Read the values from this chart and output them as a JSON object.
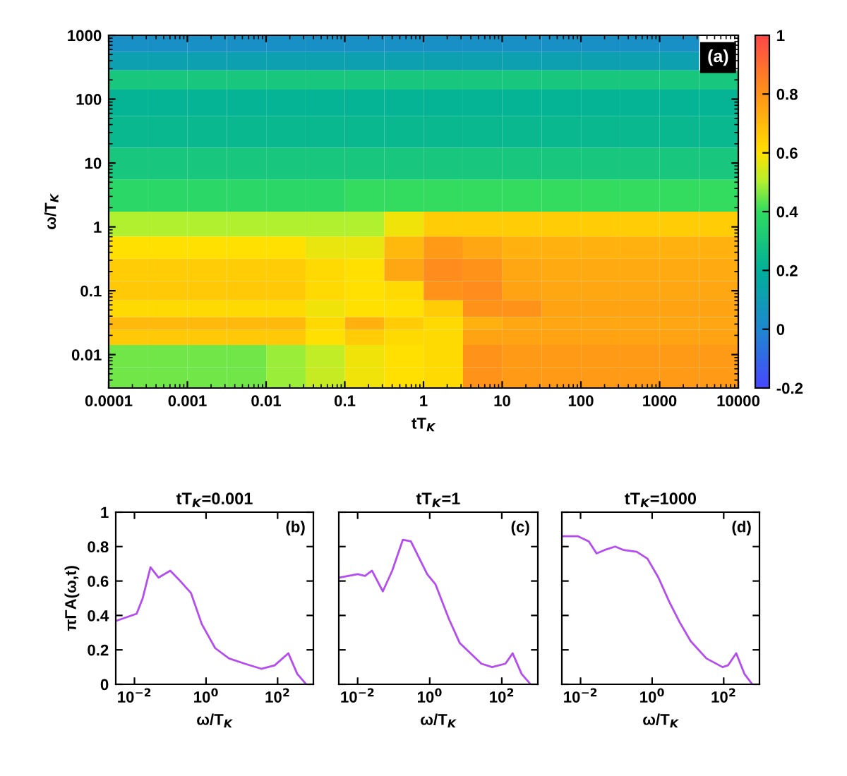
{
  "chart_data": [
    {
      "type": "heatmap",
      "xlabel": "tT$_{K}$",
      "ylabel": "ω/T$_{K}$",
      "log": "xy",
      "x": [
        0.00018,
        0.00056,
        0.0018,
        0.0056,
        0.018,
        0.056,
        0.18,
        0.56,
        1.8,
        5.6,
        18,
        56,
        180,
        560,
        1800,
        5600
      ],
      "y": [
        750,
        400,
        200,
        100,
        30,
        10,
        3,
        1,
        0.5,
        0.2,
        0.1,
        0.05,
        0.03,
        0.02,
        0.01,
        0.004
      ],
      "cells": [
        [
          0.04,
          0.04,
          0.04,
          0.04,
          0.04,
          0.04,
          0.04,
          0.04,
          0.04,
          0.04,
          0.04,
          0.04,
          0.04,
          0.04,
          0.04,
          null
        ],
        [
          0.12,
          0.12,
          0.12,
          0.12,
          0.12,
          0.12,
          0.12,
          0.12,
          0.12,
          0.12,
          0.12,
          0.12,
          0.12,
          0.12,
          0.12,
          null
        ],
        [
          0.3,
          0.3,
          0.3,
          0.3,
          0.3,
          0.3,
          0.3,
          0.3,
          0.3,
          0.3,
          0.3,
          0.3,
          0.3,
          0.3,
          0.3,
          0.3
        ],
        [
          0.22,
          0.22,
          0.22,
          0.22,
          0.22,
          0.22,
          0.22,
          0.22,
          0.22,
          0.22,
          0.22,
          0.22,
          0.22,
          0.22,
          0.22,
          0.22
        ],
        [
          0.24,
          0.24,
          0.24,
          0.24,
          0.24,
          0.24,
          0.24,
          0.24,
          0.24,
          0.24,
          0.24,
          0.24,
          0.24,
          0.24,
          0.24,
          0.24
        ],
        [
          0.3,
          0.3,
          0.3,
          0.3,
          0.3,
          0.3,
          0.3,
          0.3,
          0.3,
          0.3,
          0.3,
          0.3,
          0.3,
          0.3,
          0.3,
          0.3
        ],
        [
          0.38,
          0.38,
          0.38,
          0.38,
          0.38,
          0.38,
          0.4,
          0.4,
          0.4,
          0.4,
          0.4,
          0.4,
          0.4,
          0.4,
          0.4,
          0.4
        ],
        [
          0.5,
          0.5,
          0.5,
          0.5,
          0.5,
          0.5,
          0.5,
          0.58,
          0.65,
          0.65,
          0.65,
          0.65,
          0.65,
          0.65,
          0.65,
          0.65
        ],
        [
          0.6,
          0.6,
          0.6,
          0.6,
          0.6,
          0.57,
          0.57,
          0.7,
          0.78,
          0.75,
          0.72,
          0.72,
          0.72,
          0.72,
          0.72,
          0.72
        ],
        [
          0.65,
          0.65,
          0.65,
          0.65,
          0.65,
          0.62,
          0.6,
          0.75,
          0.82,
          0.8,
          0.75,
          0.74,
          0.74,
          0.74,
          0.74,
          0.74
        ],
        [
          0.66,
          0.66,
          0.66,
          0.66,
          0.66,
          0.62,
          0.6,
          0.62,
          0.8,
          0.82,
          0.76,
          0.75,
          0.75,
          0.75,
          0.75,
          0.75
        ],
        [
          0.62,
          0.62,
          0.62,
          0.62,
          0.62,
          0.58,
          0.6,
          0.6,
          0.65,
          0.8,
          0.8,
          0.76,
          0.76,
          0.76,
          0.76,
          0.76
        ],
        [
          0.7,
          0.7,
          0.7,
          0.7,
          0.7,
          0.62,
          0.72,
          0.65,
          0.62,
          0.72,
          0.75,
          0.75,
          0.75,
          0.75,
          0.75,
          0.75
        ],
        [
          0.66,
          0.66,
          0.66,
          0.66,
          0.66,
          0.6,
          0.65,
          0.62,
          0.62,
          0.76,
          0.76,
          0.76,
          0.76,
          0.76,
          0.76,
          0.76
        ],
        [
          0.45,
          0.45,
          0.45,
          0.45,
          0.48,
          0.52,
          0.58,
          0.6,
          0.62,
          0.8,
          0.78,
          0.78,
          0.78,
          0.78,
          0.78,
          0.78
        ],
        [
          0.45,
          0.45,
          0.45,
          0.45,
          0.48,
          0.53,
          0.58,
          0.6,
          0.62,
          0.8,
          0.78,
          0.78,
          0.78,
          0.78,
          0.78,
          0.78
        ]
      ],
      "xlim": [
        0.0001,
        10000
      ],
      "ylim": [
        0.003,
        1000
      ],
      "xticks": [
        0.0001,
        0.001,
        0.01,
        0.1,
        1,
        10,
        100,
        1000,
        10000
      ],
      "yticks": [
        0.01,
        0.1,
        1,
        10,
        100,
        1000
      ],
      "clim": [
        -0.2,
        1
      ],
      "cticks": [
        -0.2,
        0,
        0.2,
        0.4,
        0.6,
        0.8,
        1
      ],
      "annotations": [
        "(a)"
      ]
    },
    {
      "type": "line",
      "title": "tT$_{K}$=0.001",
      "xlabel": "ω/T$_{K}$",
      "ylabel": "πΓA(ω,t)",
      "log": "x",
      "series": [
        {
          "color": "#b44cf0",
          "x": [
            0.0032,
            0.0115,
            0.017,
            0.028,
            0.047,
            0.1,
            0.19,
            0.38,
            0.76,
            1.8,
            4.4,
            12,
            35,
            83,
            200,
            355,
            630
          ],
          "values": [
            0.37,
            0.41,
            0.5,
            0.68,
            0.62,
            0.66,
            0.6,
            0.53,
            0.35,
            0.21,
            0.15,
            0.12,
            0.09,
            0.11,
            0.18,
            0.06,
            0.0
          ]
        }
      ],
      "xlim": [
        0.003,
        1000
      ],
      "ylim": [
        0,
        1
      ],
      "xticks": [
        {
          "value": 0.01,
          "label": "10$^{−2}$"
        },
        {
          "value": 1,
          "label": "10$^{0}$"
        },
        {
          "value": 100,
          "label": "10$^{2}$"
        }
      ],
      "yticks": [
        0,
        0.2,
        0.4,
        0.6,
        0.8,
        1
      ],
      "annotations": [
        "(b)"
      ]
    },
    {
      "type": "line",
      "title": "tT$_{K}$=1",
      "xlabel": "ω/T$_{K}$",
      "log": "x",
      "tick_labels": "x",
      "series": [
        {
          "color": "#b44cf0",
          "x": [
            0.0032,
            0.01,
            0.016,
            0.025,
            0.05,
            0.091,
            0.18,
            0.3,
            0.85,
            1.45,
            3.4,
            6.8,
            13.5,
            27,
            54,
            126,
            200,
            355,
            630
          ],
          "values": [
            0.62,
            0.64,
            0.63,
            0.66,
            0.54,
            0.66,
            0.84,
            0.83,
            0.64,
            0.58,
            0.38,
            0.24,
            0.18,
            0.12,
            0.1,
            0.12,
            0.18,
            0.06,
            0.0
          ]
        }
      ],
      "xlim": [
        0.003,
        1000
      ],
      "ylim": [
        0,
        1
      ],
      "xticks": [
        {
          "value": 0.01,
          "label": "10$^{−2}$"
        },
        {
          "value": 1,
          "label": "10$^{0}$"
        },
        {
          "value": 100,
          "label": "10$^{2}$"
        }
      ],
      "yticks": [
        0,
        0.2,
        0.4,
        0.6,
        0.8,
        1
      ],
      "annotations": [
        "(c)"
      ]
    },
    {
      "type": "line",
      "title": "tT$_{K}$=1000",
      "xlabel": "ω/T$_{K}$",
      "log": "x",
      "tick_labels": "x",
      "series": [
        {
          "color": "#b44cf0",
          "x": [
            0.0032,
            0.0085,
            0.017,
            0.028,
            0.047,
            0.093,
            0.16,
            0.37,
            0.74,
            1.5,
            3,
            5.9,
            12,
            33,
            93,
            132,
            224,
            380,
            630
          ],
          "values": [
            0.86,
            0.86,
            0.83,
            0.76,
            0.78,
            0.8,
            0.78,
            0.77,
            0.73,
            0.62,
            0.48,
            0.36,
            0.25,
            0.15,
            0.1,
            0.11,
            0.18,
            0.06,
            0.0
          ]
        }
      ],
      "xlim": [
        0.003,
        1000
      ],
      "ylim": [
        0,
        1
      ],
      "xticks": [
        {
          "value": 0.01,
          "label": "10$^{−2}$"
        },
        {
          "value": 1,
          "label": "10$^{0}$"
        },
        {
          "value": 100,
          "label": "10$^{2}$"
        }
      ],
      "yticks": [
        0,
        0.2,
        0.4,
        0.6,
        0.8,
        1
      ],
      "annotations": [
        "(d)"
      ]
    }
  ]
}
